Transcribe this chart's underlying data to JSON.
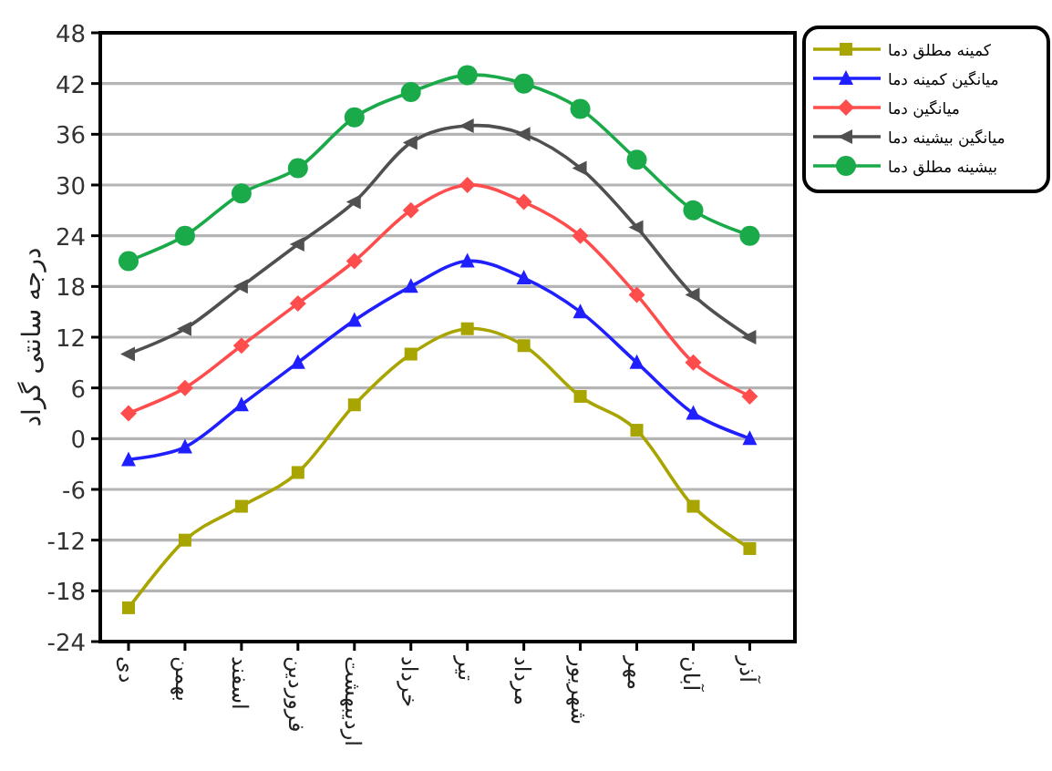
{
  "chart_data": {
    "type": "line",
    "ylabel": "درجه سانتی گراد",
    "categories": [
      "دی",
      "بهمن",
      "اسفند",
      "فروردین",
      "اردیبهشت",
      "خرداد",
      "تیر",
      "مرداد",
      "شهریور",
      "مهر",
      "آبان",
      "آذر"
    ],
    "ylim": [
      -24,
      48
    ],
    "yticks": [
      -24,
      -18,
      -12,
      -6,
      0,
      6,
      12,
      18,
      24,
      30,
      36,
      42,
      48
    ],
    "grid": "y",
    "legend": "top right",
    "series": [
      {
        "name": "کمینه مطلق دما",
        "color": "#a8a400",
        "marker": "square",
        "values": [
          -20,
          -12,
          -8,
          -4,
          4,
          10,
          13,
          11,
          5,
          1,
          -8,
          -13
        ]
      },
      {
        "name": "میانگین کمینه دما",
        "color": "#1f1fff",
        "marker": "triangle",
        "values": [
          -2.5,
          -1,
          4,
          9,
          14,
          18,
          21,
          19,
          15,
          9,
          3,
          0
        ]
      },
      {
        "name": "میانگین دما",
        "color": "#ff4d4d",
        "marker": "diamond",
        "values": [
          3,
          6,
          11,
          16,
          21,
          27,
          30,
          28,
          24,
          17,
          9,
          5
        ]
      },
      {
        "name": "میانگین بیشینه دما",
        "color": "#505050",
        "marker": "triangle-left",
        "values": [
          10,
          13,
          18,
          23,
          28,
          35,
          37,
          36,
          32,
          25,
          17,
          12
        ]
      },
      {
        "name": "بیشینه مطلق دما",
        "color": "#1aaa4a",
        "marker": "circle",
        "values": [
          21,
          24,
          29,
          32,
          38,
          41,
          43,
          42,
          39,
          33,
          27,
          24
        ]
      }
    ]
  }
}
